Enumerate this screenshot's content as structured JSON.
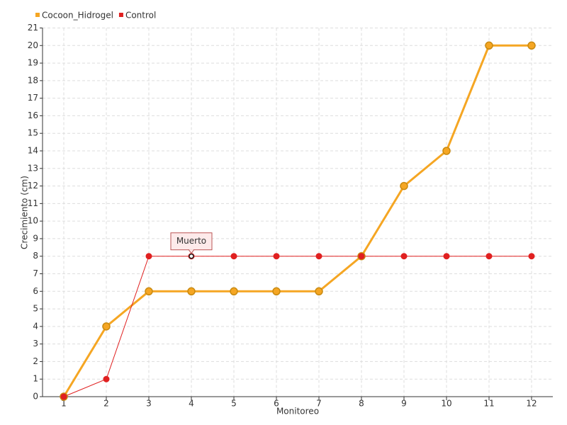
{
  "chart_data": {
    "type": "line",
    "x_label": "Monitoreo",
    "y_label": "Crecimiento (cm)",
    "x": [
      1,
      2,
      3,
      4,
      5,
      6,
      7,
      8,
      9,
      10,
      11,
      12
    ],
    "xlim": [
      0.5,
      12.5
    ],
    "xticks": [
      1,
      2,
      3,
      4,
      5,
      6,
      7,
      8,
      9,
      10,
      11,
      12
    ],
    "ylim": [
      0,
      21
    ],
    "yticks": [
      0,
      1,
      2,
      3,
      4,
      5,
      6,
      7,
      8,
      9,
      10,
      11,
      12,
      13,
      14,
      15,
      16,
      17,
      18,
      19,
      20,
      21
    ],
    "grid": true,
    "legend": "top-left",
    "series": [
      {
        "name": "Cocoon_Hidrogel",
        "color": "#f5a623",
        "values": [
          0,
          4,
          6,
          6,
          6,
          6,
          6,
          8,
          12,
          14,
          20,
          20
        ]
      },
      {
        "name": "Control",
        "color": "#e02020",
        "values": [
          0,
          1,
          8,
          8,
          8,
          8,
          8,
          8,
          8,
          8,
          8,
          8
        ]
      }
    ],
    "annotations": [
      {
        "text": "Muerto",
        "x": 4,
        "y": 8
      }
    ]
  }
}
